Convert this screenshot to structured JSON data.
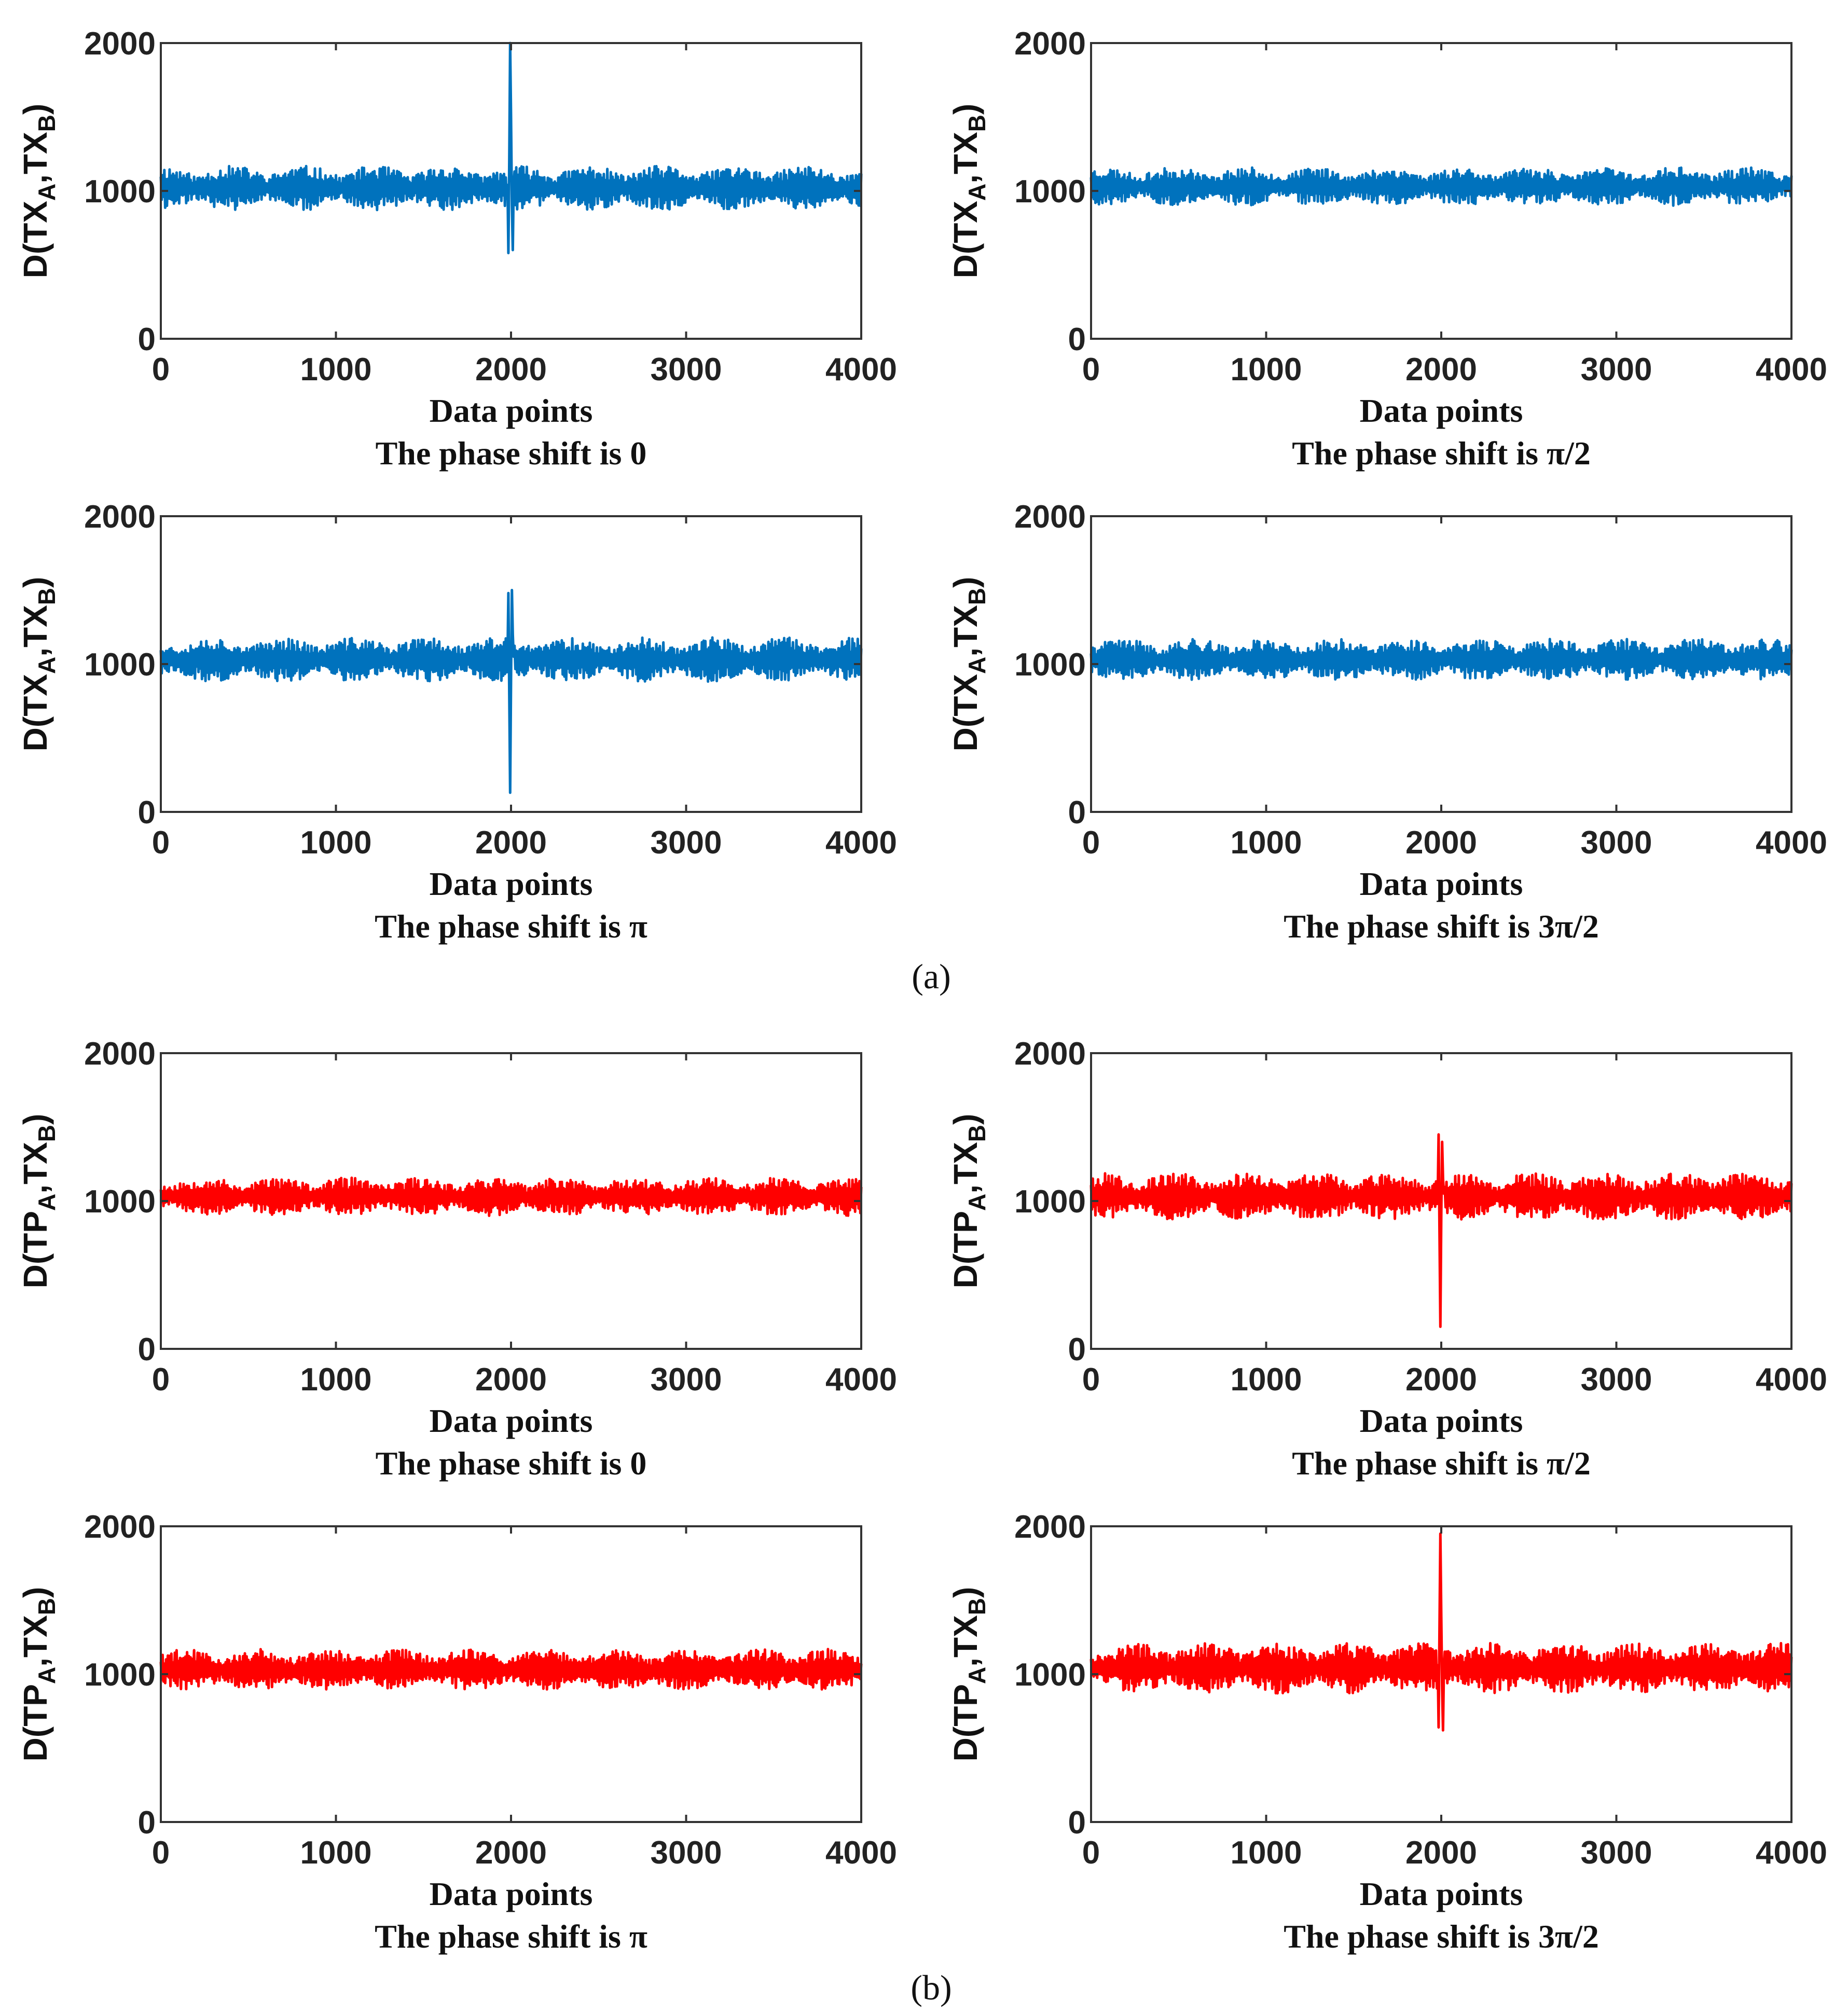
{
  "figure": {
    "panel_labels": [
      "(a)",
      "(b)"
    ]
  },
  "colors": {
    "series_a": "#0072BD",
    "series_b": "#FF0000",
    "axes": "#333333"
  },
  "chart_data": [
    {
      "type": "line",
      "group": "a",
      "color": "#0072BD",
      "xlabel": "Data points",
      "caption": "The phase shift is 0",
      "ylabel_parts": [
        "D(TX",
        "A",
        ",TX",
        "B",
        ")"
      ],
      "xlim": [
        0,
        4000
      ],
      "ylim": [
        0,
        2000
      ],
      "xticks": [
        0,
        1000,
        2000,
        3000,
        4000
      ],
      "yticks": [
        0,
        1000,
        2000
      ],
      "noise": {
        "mean": 1020,
        "amplitude": 150,
        "seed": 11
      },
      "events": [
        {
          "x": 1980,
          "y": 1040
        },
        {
          "x": 1985,
          "y": 580
        },
        {
          "x": 1990,
          "y": 1200
        },
        {
          "x": 1995,
          "y": 2000
        },
        {
          "x": 2000,
          "y": 1500
        },
        {
          "x": 2005,
          "y": 900
        },
        {
          "x": 2010,
          "y": 600
        },
        {
          "x": 2015,
          "y": 1050
        }
      ]
    },
    {
      "type": "line",
      "group": "a",
      "color": "#0072BD",
      "xlabel": "Data points",
      "caption": "The phase shift is π/2",
      "ylabel_parts": [
        "D(TX",
        "A",
        ",TX",
        "B",
        ")"
      ],
      "xlim": [
        0,
        4000
      ],
      "ylim": [
        0,
        2000
      ],
      "xticks": [
        0,
        1000,
        2000,
        3000,
        4000
      ],
      "yticks": [
        0,
        1000,
        2000
      ],
      "noise": {
        "mean": 1030,
        "amplitude": 130,
        "seed": 23
      },
      "events": []
    },
    {
      "type": "line",
      "group": "a",
      "color": "#0072BD",
      "xlabel": "Data points",
      "caption": "The phase shift is π",
      "ylabel_parts": [
        "D(TX",
        "A",
        ",TX",
        "B",
        ")"
      ],
      "xlim": [
        0,
        4000
      ],
      "ylim": [
        0,
        2000
      ],
      "xticks": [
        0,
        1000,
        2000,
        3000,
        4000
      ],
      "yticks": [
        0,
        1000,
        2000
      ],
      "noise": {
        "mean": 1030,
        "amplitude": 150,
        "seed": 37
      },
      "events": [
        {
          "x": 1980,
          "y": 1060
        },
        {
          "x": 1985,
          "y": 1480
        },
        {
          "x": 1990,
          "y": 800
        },
        {
          "x": 1995,
          "y": 130
        },
        {
          "x": 2000,
          "y": 900
        },
        {
          "x": 2005,
          "y": 1500
        },
        {
          "x": 2010,
          "y": 1200
        },
        {
          "x": 2015,
          "y": 1050
        }
      ]
    },
    {
      "type": "line",
      "group": "a",
      "color": "#0072BD",
      "xlabel": "Data points",
      "caption": "The phase shift is 3π/2",
      "ylabel_parts": [
        "D(TX",
        "A",
        ",TX",
        "B",
        ")"
      ],
      "xlim": [
        0,
        4000
      ],
      "ylim": [
        0,
        2000
      ],
      "xticks": [
        0,
        1000,
        2000,
        3000,
        4000
      ],
      "yticks": [
        0,
        1000,
        2000
      ],
      "noise": {
        "mean": 1030,
        "amplitude": 140,
        "seed": 41
      },
      "events": []
    },
    {
      "type": "line",
      "group": "b",
      "color": "#FF0000",
      "xlabel": "Data points",
      "caption": "The phase shift is 0",
      "ylabel_parts": [
        "D(TP",
        "A",
        ",TX",
        "B",
        ")"
      ],
      "xlim": [
        0,
        4000
      ],
      "ylim": [
        0,
        2000
      ],
      "xticks": [
        0,
        1000,
        2000,
        3000,
        4000
      ],
      "yticks": [
        0,
        1000,
        2000
      ],
      "noise": {
        "mean": 1030,
        "amplitude": 130,
        "seed": 53
      },
      "events": []
    },
    {
      "type": "line",
      "group": "b",
      "color": "#FF0000",
      "xlabel": "Data points",
      "caption": "The phase shift is π/2",
      "ylabel_parts": [
        "D(TP",
        "A",
        ",TX",
        "B",
        ")"
      ],
      "xlim": [
        0,
        4000
      ],
      "ylim": [
        0,
        2000
      ],
      "xticks": [
        0,
        1000,
        2000,
        3000,
        4000
      ],
      "yticks": [
        0,
        1000,
        2000
      ],
      "noise": {
        "mean": 1030,
        "amplitude": 160,
        "seed": 67
      },
      "events": [
        {
          "x": 1980,
          "y": 1060
        },
        {
          "x": 1985,
          "y": 1450
        },
        {
          "x": 1990,
          "y": 800
        },
        {
          "x": 1995,
          "y": 150
        },
        {
          "x": 2000,
          "y": 900
        },
        {
          "x": 2005,
          "y": 1400
        },
        {
          "x": 2010,
          "y": 1150
        },
        {
          "x": 2015,
          "y": 1050
        }
      ]
    },
    {
      "type": "line",
      "group": "b",
      "color": "#FF0000",
      "xlabel": "Data points",
      "caption": "The phase shift is π",
      "ylabel_parts": [
        "D(TP",
        "A",
        ",TX",
        "B",
        ")"
      ],
      "xlim": [
        0,
        4000
      ],
      "ylim": [
        0,
        2000
      ],
      "xticks": [
        0,
        1000,
        2000,
        3000,
        4000
      ],
      "yticks": [
        0,
        1000,
        2000
      ],
      "noise": {
        "mean": 1030,
        "amplitude": 140,
        "seed": 79
      },
      "events": []
    },
    {
      "type": "line",
      "group": "b",
      "color": "#FF0000",
      "xlabel": "Data points",
      "caption": "The phase shift is 3π/2",
      "ylabel_parts": [
        "D(TP",
        "A",
        ",TX",
        "B",
        ")"
      ],
      "xlim": [
        0,
        4000
      ],
      "ylim": [
        0,
        2000
      ],
      "xticks": [
        0,
        1000,
        2000,
        3000,
        4000
      ],
      "yticks": [
        0,
        1000,
        2000
      ],
      "noise": {
        "mean": 1040,
        "amplitude": 170,
        "seed": 97
      },
      "events": [
        {
          "x": 1980,
          "y": 1060
        },
        {
          "x": 1985,
          "y": 640
        },
        {
          "x": 1990,
          "y": 1300
        },
        {
          "x": 1995,
          "y": 1950
        },
        {
          "x": 2000,
          "y": 1400
        },
        {
          "x": 2005,
          "y": 900
        },
        {
          "x": 2010,
          "y": 620
        },
        {
          "x": 2015,
          "y": 1050
        }
      ]
    }
  ]
}
